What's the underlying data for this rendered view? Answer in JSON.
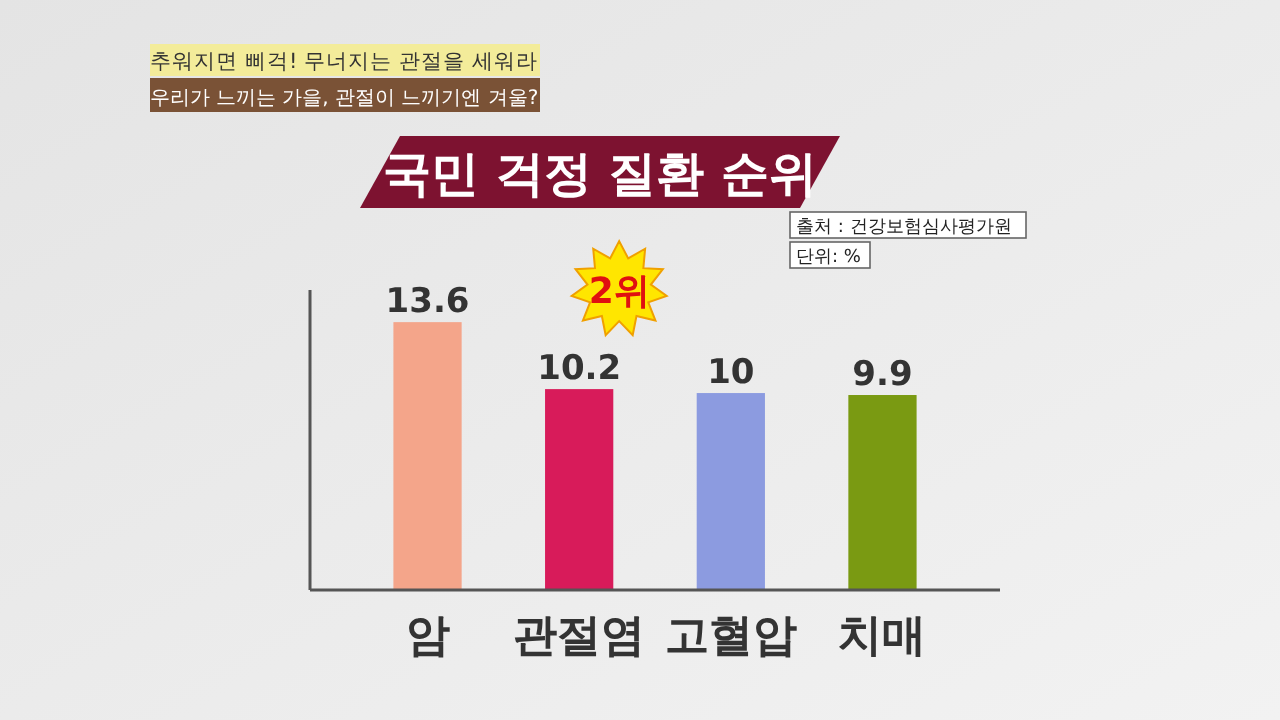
{
  "chart_data": {
    "type": "bar",
    "title": "국민 걱정 질환 순위",
    "categories": [
      "암",
      "관절염",
      "고혈압",
      "치매"
    ],
    "values": [
      13.6,
      10.2,
      10,
      9.9
    ],
    "colors": [
      "#f4a58a",
      "#d81b5a",
      "#8c9be0",
      "#7a9a12"
    ],
    "data_labels": true,
    "annotations": [
      "추워지면 삐걱! 무너지는 관절을 세워라",
      "우리가 느끼는 가을, 관절이 느끼기엔 겨울?",
      "출처 : 건강보험심사평가원",
      "단위: %",
      {
        "text": "2위",
        "x": "관절염",
        "y": 10.2
      }
    ]
  }
}
